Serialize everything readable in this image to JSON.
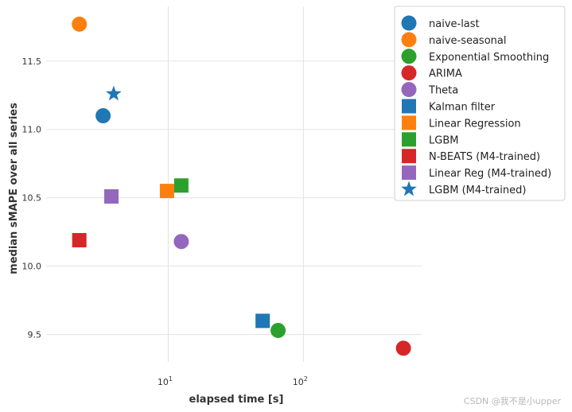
{
  "chart_data": {
    "type": "scatter",
    "xlabel": "elapsed time [s]",
    "ylabel": "median sMAPE over all series",
    "xscale": "log",
    "xlim": [
      1.25,
      750
    ],
    "ylim": [
      9.3,
      11.9
    ],
    "xticks": [
      {
        "value": 10,
        "base": "10",
        "exp": "1"
      },
      {
        "value": 100,
        "base": "10",
        "exp": "2"
      }
    ],
    "yticks": [
      9.5,
      10.0,
      10.5,
      11.0,
      11.5
    ],
    "ytick_labels": [
      "9.5",
      "10.0",
      "10.5",
      "11.0",
      "11.5"
    ],
    "grid": true,
    "legend_position": "top-right",
    "series": [
      {
        "name": "naive-last",
        "marker": "circle",
        "color": "#1f77b4",
        "x": 3.3,
        "y": 11.1
      },
      {
        "name": "naive-seasonal",
        "marker": "circle",
        "color": "#ff7f0e",
        "x": 2.2,
        "y": 11.77
      },
      {
        "name": "Exponential Smoothing",
        "marker": "circle",
        "color": "#2ca02c",
        "x": 65,
        "y": 9.53
      },
      {
        "name": "ARIMA",
        "marker": "circle",
        "color": "#d62728",
        "x": 550,
        "y": 9.4
      },
      {
        "name": "Theta",
        "marker": "circle",
        "color": "#9467bd",
        "x": 12.5,
        "y": 10.18
      },
      {
        "name": "Kalman filter",
        "marker": "square",
        "color": "#1f77b4",
        "x": 50,
        "y": 9.6
      },
      {
        "name": "Linear Regression",
        "marker": "square",
        "color": "#ff7f0e",
        "x": 9.8,
        "y": 10.55
      },
      {
        "name": "LGBM",
        "marker": "square",
        "color": "#2ca02c",
        "x": 12.5,
        "y": 10.59
      },
      {
        "name": "N-BEATS (M4-trained)",
        "marker": "square",
        "color": "#d62728",
        "x": 2.2,
        "y": 10.19
      },
      {
        "name": "Linear Reg (M4-trained)",
        "marker": "square",
        "color": "#9467bd",
        "x": 3.8,
        "y": 10.51
      },
      {
        "name": "LGBM (M4-trained)",
        "marker": "star",
        "color": "#1f77b4",
        "x": 3.95,
        "y": 11.26
      }
    ]
  },
  "watermark": "CSDN @我不是小upper"
}
